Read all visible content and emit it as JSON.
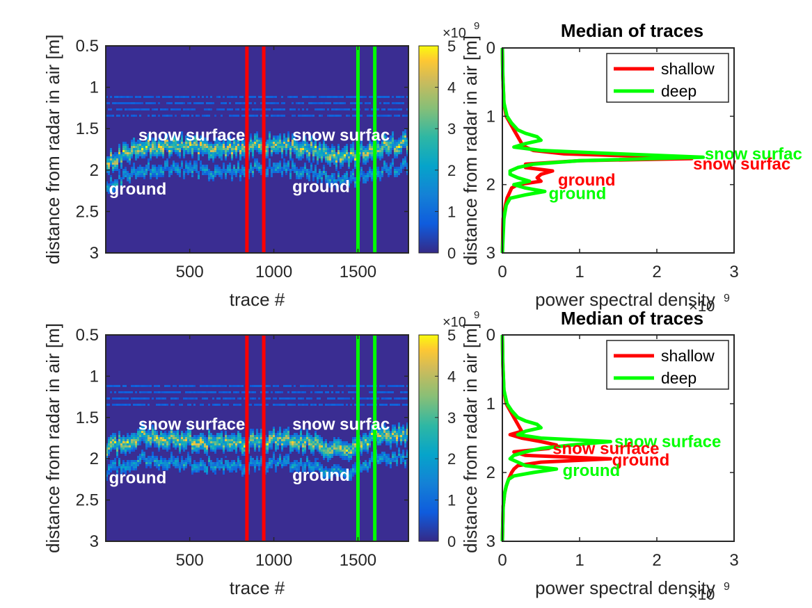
{
  "chart_data": [
    {
      "type": "heatmap",
      "xlabel": "trace #",
      "ylabel": "distance from radar in air [m]",
      "x_ticks": [
        "500",
        "1000",
        "1500"
      ],
      "x_tick_values": [
        500,
        1000,
        1500
      ],
      "xlim": [
        1,
        1800
      ],
      "y_ticks": [
        "0.5",
        "1",
        "1.5",
        "2",
        "2.5",
        "3"
      ],
      "y_tick_values": [
        0.5,
        1,
        1.5,
        2,
        2.5,
        3
      ],
      "ylim": [
        0.5,
        3
      ],
      "colorbar": {
        "ticks": [
          "0",
          "1",
          "2",
          "3",
          "4",
          "5"
        ],
        "tick_values": [
          0,
          1,
          2,
          3,
          4,
          5
        ],
        "exponent_label": "×10",
        "exponent": "9",
        "range": [
          0,
          5
        ]
      },
      "vertical_markers": [
        {
          "x": 840,
          "color": "#ff0000"
        },
        {
          "x": 940,
          "color": "#ff0000"
        },
        {
          "x": 1500,
          "color": "#00ff00"
        },
        {
          "x": 1600,
          "color": "#00ff00"
        }
      ],
      "annotations": [
        {
          "text": "snow surface",
          "x": 195,
          "y": 1.58
        },
        {
          "text": "ground",
          "x": 20,
          "y": 2.23
        },
        {
          "text": "snow surfac",
          "x": 1110,
          "y": 1.58
        },
        {
          "text": "ground",
          "x": 1110,
          "y": 2.2
        }
      ],
      "surface_profile": {
        "x": [
          0,
          200,
          400,
          600,
          800,
          1000,
          1200,
          1400,
          1600,
          1800
        ],
        "surface_y": [
          1.9,
          1.72,
          1.68,
          1.72,
          1.72,
          1.68,
          1.72,
          1.85,
          1.72,
          1.65
        ]
      }
    },
    {
      "type": "line",
      "title": "Median of traces",
      "xlabel": "power spectral density",
      "ylabel": "distance from radar in air [m]",
      "x_ticks": [
        "0",
        "1",
        "2",
        "3"
      ],
      "x_tick_values": [
        0,
        1,
        2,
        3
      ],
      "x_exponent_label": "×10",
      "x_exponent": "9",
      "xlim": [
        0,
        3
      ],
      "y_ticks": [
        "0",
        "1",
        "2",
        "3"
      ],
      "y_tick_values": [
        0,
        1,
        2,
        3
      ],
      "ylim": [
        0,
        3
      ],
      "legend_position": "top-right",
      "series": [
        {
          "name": "shallow",
          "color": "#ff0000",
          "y": [
            0,
            0.4,
            0.8,
            1.0,
            1.1,
            1.2,
            1.3,
            1.4,
            1.45,
            1.5,
            1.55,
            1.6,
            1.62,
            1.65,
            1.7,
            1.75,
            1.8,
            1.85,
            1.9,
            1.95,
            2.0,
            2.05,
            2.1,
            2.2,
            2.3,
            2.5,
            3.0
          ],
          "x": [
            0,
            0.005,
            0.02,
            0.05,
            0.1,
            0.15,
            0.2,
            0.25,
            0.3,
            0.4,
            0.8,
            2.2,
            2.45,
            1.0,
            0.3,
            0.3,
            0.65,
            0.5,
            0.45,
            0.5,
            0.2,
            0.12,
            0.1,
            0.06,
            0.04,
            0.01,
            0
          ]
        },
        {
          "name": "deep",
          "color": "#00ff00",
          "y": [
            0,
            0.4,
            0.8,
            1.0,
            1.1,
            1.2,
            1.25,
            1.3,
            1.35,
            1.4,
            1.45,
            1.5,
            1.55,
            1.6,
            1.65,
            1.7,
            1.75,
            1.8,
            1.85,
            1.9,
            1.95,
            2.0,
            2.05,
            2.1,
            2.15,
            2.2,
            2.3,
            2.5,
            3.0
          ],
          "x": [
            0,
            0.005,
            0.02,
            0.06,
            0.12,
            0.2,
            0.3,
            0.45,
            0.5,
            0.3,
            0.15,
            0.5,
            1.5,
            2.6,
            1.0,
            0.4,
            0.2,
            0.1,
            0.1,
            0.2,
            0.35,
            0.15,
            0.3,
            0.55,
            0.3,
            0.1,
            0.05,
            0.02,
            0
          ]
        }
      ],
      "annotations": [
        {
          "text": "snow surfac",
          "x": 2.62,
          "y": 1.55,
          "color": "#00ff00"
        },
        {
          "text": "snow surfac",
          "x": 2.47,
          "y": 1.7,
          "color": "#ff0000"
        },
        {
          "text": "ground",
          "x": 0.72,
          "y": 1.93,
          "color": "#ff0000"
        },
        {
          "text": "ground",
          "x": 0.6,
          "y": 2.13,
          "color": "#00ff00"
        }
      ]
    },
    {
      "type": "heatmap",
      "xlabel": "trace #",
      "ylabel": "distance from radar in air [m]",
      "x_ticks": [
        "500",
        "1000",
        "1500"
      ],
      "x_tick_values": [
        500,
        1000,
        1500
      ],
      "xlim": [
        1,
        1800
      ],
      "y_ticks": [
        "0.5",
        "1",
        "1.5",
        "2",
        "2.5",
        "3"
      ],
      "y_tick_values": [
        0.5,
        1,
        1.5,
        2,
        2.5,
        3
      ],
      "ylim": [
        0.5,
        3
      ],
      "colorbar": {
        "ticks": [
          "0",
          "1",
          "2",
          "3",
          "4",
          "5"
        ],
        "tick_values": [
          0,
          1,
          2,
          3,
          4,
          5
        ],
        "exponent_label": "×10",
        "exponent": "9",
        "range": [
          0,
          5
        ]
      },
      "vertical_markers": [
        {
          "x": 840,
          "color": "#ff0000"
        },
        {
          "x": 940,
          "color": "#ff0000"
        },
        {
          "x": 1500,
          "color": "#00ff00"
        },
        {
          "x": 1600,
          "color": "#00ff00"
        }
      ],
      "annotations": [
        {
          "text": "snow surface",
          "x": 195,
          "y": 1.58
        },
        {
          "text": "ground",
          "x": 20,
          "y": 2.23
        },
        {
          "text": "snow surfac",
          "x": 1110,
          "y": 1.58
        },
        {
          "text": "ground",
          "x": 1110,
          "y": 2.2
        }
      ],
      "surface_profile": {
        "x": [
          0,
          200,
          400,
          600,
          800,
          1000,
          1200,
          1400,
          1600,
          1800
        ],
        "surface_y": [
          1.85,
          1.72,
          1.75,
          1.78,
          1.8,
          1.75,
          1.78,
          1.9,
          1.72,
          1.68
        ]
      }
    },
    {
      "type": "line",
      "title": "Median of traces",
      "xlabel": "power spectral density",
      "ylabel": "distance from radar in air [m]",
      "x_ticks": [
        "0",
        "1",
        "2",
        "3"
      ],
      "x_tick_values": [
        0,
        1,
        2,
        3
      ],
      "x_exponent_label": "×10",
      "x_exponent": "9",
      "xlim": [
        0,
        3
      ],
      "y_ticks": [
        "0",
        "1",
        "2",
        "3"
      ],
      "y_tick_values": [
        0,
        1,
        2,
        3
      ],
      "ylim": [
        0,
        3
      ],
      "legend_position": "top-right",
      "series": [
        {
          "name": "shallow",
          "color": "#ff0000",
          "y": [
            0,
            0.4,
            0.8,
            1.0,
            1.1,
            1.2,
            1.3,
            1.4,
            1.45,
            1.5,
            1.55,
            1.6,
            1.65,
            1.7,
            1.75,
            1.8,
            1.85,
            1.9,
            1.95,
            2.0,
            2.1,
            2.2,
            2.3,
            2.5,
            3.0
          ],
          "x": [
            0,
            0.005,
            0.02,
            0.05,
            0.1,
            0.15,
            0.2,
            0.25,
            0.1,
            0.25,
            0.5,
            0.7,
            0.6,
            0.15,
            0.3,
            1.4,
            0.5,
            0.2,
            0.15,
            0.12,
            0.08,
            0.05,
            0.03,
            0.01,
            0
          ]
        },
        {
          "name": "deep",
          "color": "#00ff00",
          "y": [
            0,
            0.4,
            0.8,
            1.0,
            1.1,
            1.2,
            1.25,
            1.3,
            1.35,
            1.4,
            1.45,
            1.5,
            1.55,
            1.6,
            1.65,
            1.7,
            1.75,
            1.8,
            1.85,
            1.9,
            1.95,
            2.0,
            2.05,
            2.1,
            2.2,
            2.3,
            2.5,
            3.0
          ],
          "x": [
            0,
            0.005,
            0.02,
            0.06,
            0.12,
            0.2,
            0.3,
            0.45,
            0.5,
            0.3,
            0.2,
            0.5,
            1.4,
            0.9,
            0.5,
            0.3,
            0.15,
            0.1,
            0.2,
            0.3,
            0.7,
            0.4,
            0.15,
            0.08,
            0.05,
            0.03,
            0.01,
            0
          ]
        }
      ],
      "annotations": [
        {
          "text": "snow surface",
          "x": 1.45,
          "y": 1.55,
          "color": "#00ff00"
        },
        {
          "text": "snow surface",
          "x": 0.65,
          "y": 1.65,
          "color": "#ff0000"
        },
        {
          "text": "ground",
          "x": 1.42,
          "y": 1.82,
          "color": "#ff0000"
        },
        {
          "text": "ground",
          "x": 0.78,
          "y": 1.97,
          "color": "#00ff00"
        }
      ]
    }
  ]
}
